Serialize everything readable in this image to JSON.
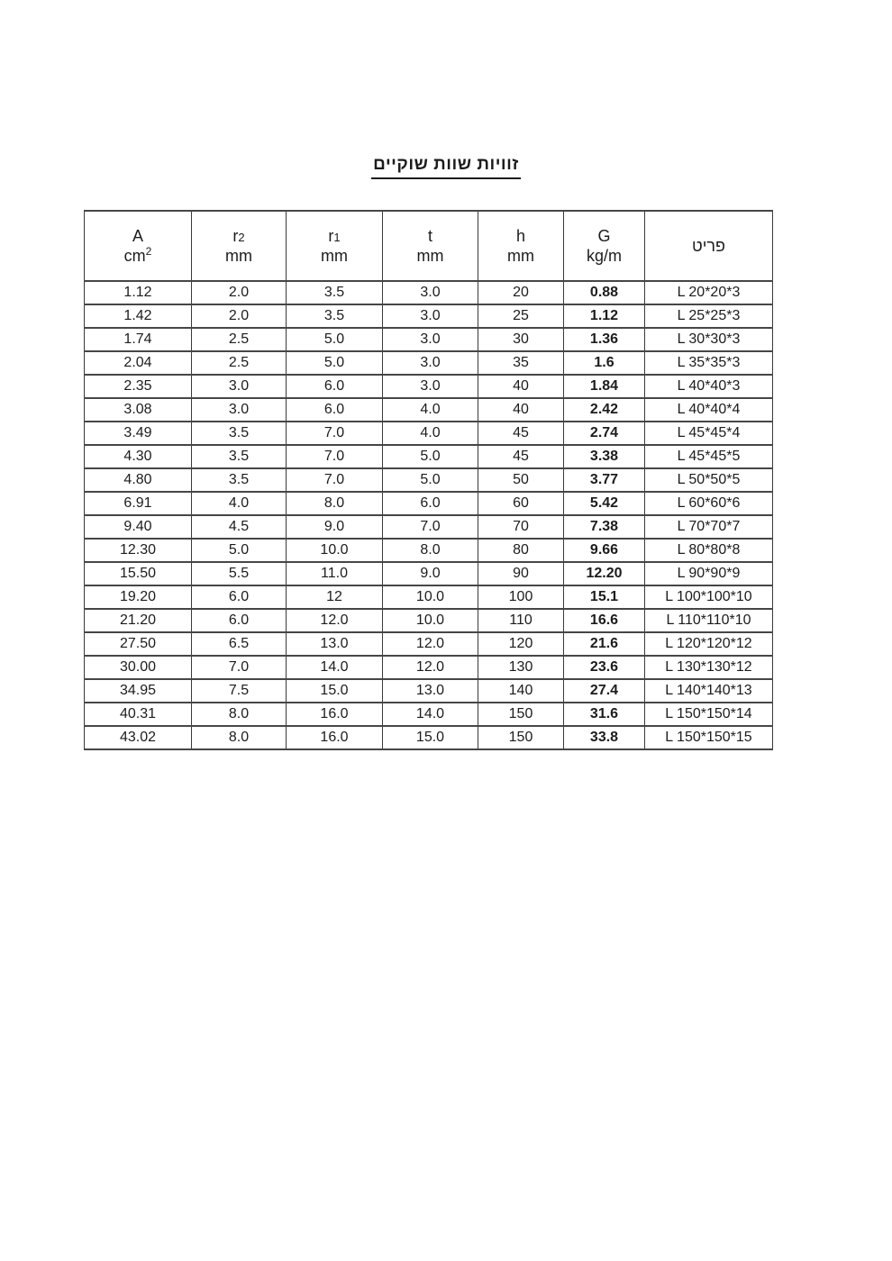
{
  "page": {
    "title": "זוויות שוות שוקיים"
  },
  "colors": {
    "background": "#ffffff",
    "text": "#1c1c1c",
    "border": "#3a3a3a"
  },
  "table": {
    "headers": [
      {
        "name": "A",
        "line1": "A",
        "line1_small": "",
        "line2": "cm",
        "line2_sup": "2",
        "hebrew": false
      },
      {
        "name": "r2",
        "line1": "r",
        "line1_small": "2",
        "line2": "mm",
        "line2_sup": "",
        "hebrew": false
      },
      {
        "name": "r1",
        "line1": "r",
        "line1_small": "1",
        "line2": "mm",
        "line2_sup": "",
        "hebrew": false
      },
      {
        "name": "t",
        "line1": "t",
        "line1_small": "",
        "line2": "mm",
        "line2_sup": "",
        "hebrew": false
      },
      {
        "name": "h",
        "line1": "h",
        "line1_small": "",
        "line2": "mm",
        "line2_sup": "",
        "hebrew": false
      },
      {
        "name": "G",
        "line1": "G",
        "line1_small": "",
        "line2": "kg/m",
        "line2_sup": "",
        "hebrew": false
      },
      {
        "name": "item",
        "line1": "פריט",
        "line1_small": "",
        "line2": "",
        "line2_sup": "",
        "hebrew": true
      }
    ],
    "rows": [
      [
        "1.12",
        "2.0",
        "3.5",
        "3.0",
        "20",
        "0.88",
        "L 20*20*3"
      ],
      [
        "1.42",
        "2.0",
        "3.5",
        "3.0",
        "25",
        "1.12",
        "L 25*25*3"
      ],
      [
        "1.74",
        "2.5",
        "5.0",
        "3.0",
        "30",
        "1.36",
        "L 30*30*3"
      ],
      [
        "2.04",
        "2.5",
        "5.0",
        "3.0",
        "35",
        "1.6",
        "L 35*35*3"
      ],
      [
        "2.35",
        "3.0",
        "6.0",
        "3.0",
        "40",
        "1.84",
        "L 40*40*3"
      ],
      [
        "3.08",
        "3.0",
        "6.0",
        "4.0",
        "40",
        "2.42",
        "L 40*40*4"
      ],
      [
        "3.49",
        "3.5",
        "7.0",
        "4.0",
        "45",
        "2.74",
        "L 45*45*4"
      ],
      [
        "4.30",
        "3.5",
        "7.0",
        "5.0",
        "45",
        "3.38",
        "L 45*45*5"
      ],
      [
        "4.80",
        "3.5",
        "7.0",
        "5.0",
        "50",
        "3.77",
        "L 50*50*5"
      ],
      [
        "6.91",
        "4.0",
        "8.0",
        "6.0",
        "60",
        "5.42",
        "L 60*60*6"
      ],
      [
        "9.40",
        "4.5",
        "9.0",
        "7.0",
        "70",
        "7.38",
        "L 70*70*7"
      ],
      [
        "12.30",
        "5.0",
        "10.0",
        "8.0",
        "80",
        "9.66",
        "L 80*80*8"
      ],
      [
        "15.50",
        "5.5",
        "11.0",
        "9.0",
        "90",
        "12.20",
        "L 90*90*9"
      ],
      [
        "19.20",
        "6.0",
        "12",
        "10.0",
        "100",
        "15.1",
        "L 100*100*10"
      ],
      [
        "21.20",
        "6.0",
        "12.0",
        "10.0",
        "110",
        "16.6",
        "L 110*110*10"
      ],
      [
        "27.50",
        "6.5",
        "13.0",
        "12.0",
        "120",
        "21.6",
        "L 120*120*12"
      ],
      [
        "30.00",
        "7.0",
        "14.0",
        "12.0",
        "130",
        "23.6",
        "L 130*130*12"
      ],
      [
        "34.95",
        "7.5",
        "15.0",
        "13.0",
        "140",
        "27.4",
        "L 140*140*13"
      ],
      [
        "40.31",
        "8.0",
        "16.0",
        "14.0",
        "150",
        "31.6",
        "L 150*150*14"
      ],
      [
        "43.02",
        "8.0",
        "16.0",
        "15.0",
        "150",
        "33.8",
        "L 150*150*15"
      ]
    ]
  }
}
